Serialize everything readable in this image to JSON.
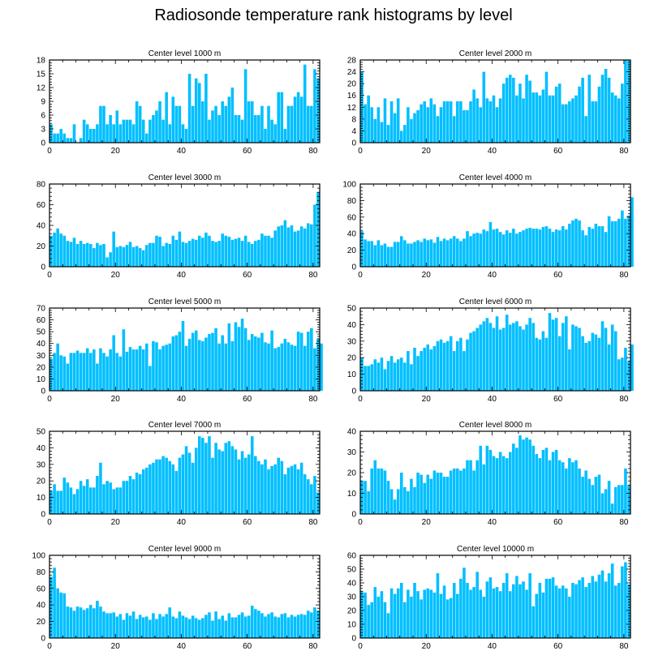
{
  "page": {
    "title": "Radiosonde temperature rank histograms by level"
  },
  "colors": {
    "bar": "#00bfff",
    "bar_edge": "#ffffff",
    "axis": "#000000"
  },
  "chart_data": [
    {
      "type": "bar",
      "title": "Center level 1000 m",
      "xlabel": "",
      "ylabel": "",
      "xlim": [
        0,
        82
      ],
      "ylim": [
        0,
        18
      ],
      "xticks": [
        0,
        20,
        40,
        60,
        80
      ],
      "yticks": [
        0,
        3,
        6,
        9,
        12,
        15,
        18
      ],
      "values": [
        4,
        2,
        2,
        3,
        2,
        1,
        1,
        4,
        0,
        1,
        5,
        4,
        3,
        3,
        4,
        8,
        8,
        4,
        6,
        4,
        7,
        4,
        5,
        5,
        5,
        4,
        9,
        8,
        5,
        2,
        5,
        6,
        7,
        9,
        5,
        11,
        4,
        10,
        8,
        8,
        4,
        3,
        15,
        8,
        14,
        13,
        9,
        15,
        5,
        7,
        8,
        6,
        9,
        8,
        10,
        12,
        6,
        6,
        5,
        16,
        9,
        9,
        6,
        6,
        8,
        3,
        8,
        5,
        4,
        11,
        11,
        3,
        8,
        8,
        10,
        11,
        10,
        17,
        8,
        8,
        16,
        14
      ]
    },
    {
      "type": "bar",
      "title": "Center level 2000 m",
      "xlabel": "",
      "ylabel": "",
      "xlim": [
        0,
        82
      ],
      "ylim": [
        0,
        28
      ],
      "xticks": [
        0,
        20,
        40,
        60,
        80
      ],
      "yticks": [
        0,
        4,
        8,
        12,
        16,
        20,
        24,
        28
      ],
      "values": [
        24,
        13,
        16,
        12,
        8,
        12,
        7,
        15,
        6,
        14,
        10,
        15,
        4,
        6,
        12,
        8,
        10,
        11,
        13,
        14,
        12,
        15,
        13,
        9,
        12,
        14,
        14,
        14,
        9,
        14,
        14,
        11,
        11,
        14,
        18,
        15,
        12,
        24,
        15,
        14,
        16,
        12,
        15,
        20,
        22,
        23,
        22,
        16,
        20,
        15,
        23,
        21,
        17,
        17,
        16,
        18,
        24,
        16,
        16,
        19,
        20,
        13,
        13,
        14,
        15,
        16,
        19,
        22,
        9,
        23,
        14,
        14,
        19,
        23,
        25,
        22,
        17,
        16,
        15,
        20,
        28,
        28
      ]
    },
    {
      "type": "bar",
      "title": "Center level 3000 m",
      "xlabel": "",
      "ylabel": "",
      "xlim": [
        0,
        82
      ],
      "ylim": [
        0,
        80
      ],
      "xticks": [
        0,
        20,
        40,
        60,
        80
      ],
      "yticks": [
        0,
        20,
        40,
        60,
        80
      ],
      "values": [
        30,
        33,
        37,
        32,
        30,
        25,
        24,
        28,
        22,
        25,
        22,
        23,
        22,
        18,
        23,
        21,
        22,
        9,
        14,
        34,
        19,
        20,
        19,
        21,
        24,
        19,
        20,
        18,
        16,
        21,
        23,
        23,
        30,
        29,
        20,
        23,
        22,
        30,
        26,
        34,
        24,
        23,
        25,
        27,
        26,
        30,
        28,
        33,
        30,
        25,
        24,
        25,
        32,
        30,
        29,
        26,
        27,
        28,
        25,
        30,
        24,
        22,
        25,
        26,
        32,
        30,
        30,
        28,
        35,
        39,
        40,
        45,
        38,
        40,
        34,
        35,
        39,
        37,
        42,
        41,
        60,
        72
      ]
    },
    {
      "type": "bar",
      "title": "Center level 4000 m",
      "xlabel": "",
      "ylabel": "",
      "xlim": [
        0,
        82
      ],
      "ylim": [
        0,
        100
      ],
      "xticks": [
        0,
        20,
        40,
        60,
        80
      ],
      "yticks": [
        0,
        20,
        40,
        60,
        80,
        100
      ],
      "values": [
        43,
        33,
        31,
        31,
        26,
        32,
        26,
        28,
        24,
        24,
        30,
        30,
        37,
        32,
        28,
        28,
        30,
        32,
        30,
        34,
        32,
        33,
        29,
        36,
        31,
        34,
        32,
        34,
        37,
        34,
        31,
        34,
        43,
        37,
        40,
        41,
        40,
        45,
        43,
        54,
        45,
        46,
        42,
        39,
        44,
        41,
        46,
        40,
        42,
        44,
        46,
        47,
        46,
        46,
        45,
        48,
        49,
        46,
        42,
        45,
        44,
        49,
        45,
        52,
        56,
        58,
        56,
        44,
        38,
        48,
        46,
        52,
        49,
        49,
        42,
        61,
        55,
        55,
        58,
        68,
        58,
        62,
        84
      ]
    },
    {
      "type": "bar",
      "title": "Center level 5000 m",
      "xlabel": "",
      "ylabel": "",
      "xlim": [
        0,
        82
      ],
      "ylim": [
        0,
        70
      ],
      "xticks": [
        0,
        20,
        40,
        60,
        80
      ],
      "yticks": [
        0,
        10,
        20,
        30,
        40,
        50,
        60,
        70
      ],
      "values": [
        27,
        32,
        40,
        30,
        29,
        23,
        32,
        32,
        34,
        32,
        32,
        36,
        32,
        35,
        23,
        36,
        32,
        29,
        35,
        47,
        32,
        29,
        52,
        33,
        37,
        35,
        35,
        38,
        35,
        40,
        21,
        42,
        41,
        35,
        38,
        39,
        40,
        46,
        47,
        50,
        59,
        38,
        44,
        49,
        51,
        43,
        42,
        45,
        48,
        49,
        53,
        40,
        47,
        40,
        57,
        42,
        58,
        54,
        61,
        53,
        43,
        48,
        46,
        45,
        49,
        41,
        40,
        51,
        36,
        37,
        40,
        44,
        41,
        39,
        38,
        50,
        49,
        38,
        50,
        53,
        36,
        44,
        40
      ]
    },
    {
      "type": "bar",
      "title": "Center level 6000 m",
      "xlabel": "",
      "ylabel": "",
      "xlim": [
        0,
        82
      ],
      "ylim": [
        0,
        50
      ],
      "xticks": [
        0,
        20,
        40,
        60,
        80
      ],
      "yticks": [
        0,
        10,
        20,
        30,
        40,
        50
      ],
      "values": [
        20,
        15,
        15,
        16,
        19,
        17,
        20,
        13,
        18,
        21,
        17,
        19,
        20,
        17,
        24,
        16,
        26,
        21,
        24,
        26,
        28,
        25,
        27,
        30,
        31,
        29,
        30,
        33,
        24,
        30,
        32,
        24,
        31,
        35,
        36,
        38,
        40,
        42,
        44,
        41,
        38,
        45,
        37,
        38,
        46,
        40,
        41,
        42,
        39,
        37,
        40,
        44,
        41,
        32,
        31,
        36,
        32,
        47,
        43,
        44,
        33,
        41,
        45,
        25,
        40,
        39,
        38,
        33,
        29,
        30,
        35,
        34,
        32,
        42,
        38,
        28,
        40,
        36,
        19,
        20,
        26,
        18,
        28
      ]
    },
    {
      "type": "bar",
      "title": "Center level 7000 m",
      "xlabel": "",
      "ylabel": "",
      "xlim": [
        0,
        82
      ],
      "ylim": [
        0,
        50
      ],
      "xticks": [
        0,
        20,
        40,
        60,
        80
      ],
      "yticks": [
        0,
        10,
        20,
        30,
        40,
        50
      ],
      "values": [
        14,
        18,
        14,
        14,
        22,
        19,
        16,
        12,
        15,
        20,
        17,
        21,
        16,
        16,
        23,
        31,
        18,
        20,
        19,
        15,
        16,
        16,
        20,
        20,
        23,
        21,
        25,
        24,
        27,
        28,
        30,
        31,
        33,
        33,
        35,
        34,
        32,
        30,
        26,
        34,
        36,
        41,
        37,
        31,
        40,
        47,
        46,
        43,
        47,
        34,
        43,
        39,
        38,
        43,
        44,
        41,
        39,
        33,
        38,
        34,
        36,
        47,
        35,
        32,
        30,
        33,
        27,
        29,
        30,
        34,
        32,
        24,
        28,
        29,
        30,
        27,
        31,
        24,
        21,
        18,
        23,
        13
      ]
    },
    {
      "type": "bar",
      "title": "Center level 8000 m",
      "xlabel": "",
      "ylabel": "",
      "xlim": [
        0,
        82
      ],
      "ylim": [
        0,
        40
      ],
      "xticks": [
        0,
        20,
        40,
        60,
        80
      ],
      "yticks": [
        0,
        10,
        20,
        30,
        40
      ],
      "values": [
        16,
        16,
        11,
        22,
        26,
        22,
        22,
        21,
        16,
        12,
        7,
        12,
        20,
        13,
        11,
        17,
        13,
        20,
        19,
        15,
        19,
        17,
        21,
        20,
        20,
        18,
        18,
        21,
        22,
        22,
        21,
        22,
        26,
        26,
        21,
        26,
        33,
        24,
        33,
        31,
        28,
        27,
        30,
        28,
        27,
        30,
        34,
        32,
        38,
        36,
        37,
        36,
        33,
        29,
        27,
        31,
        32,
        26,
        30,
        31,
        26,
        25,
        22,
        27,
        25,
        26,
        22,
        18,
        21,
        17,
        14,
        18,
        19,
        10,
        12,
        16,
        5,
        13,
        14,
        14,
        22,
        14
      ]
    },
    {
      "type": "bar",
      "title": "Center level 9000 m",
      "xlabel": "",
      "ylabel": "",
      "xlim": [
        0,
        82
      ],
      "ylim": [
        0,
        100
      ],
      "xticks": [
        0,
        20,
        40,
        60,
        80
      ],
      "yticks": [
        0,
        20,
        40,
        60,
        80,
        100
      ],
      "values": [
        74,
        85,
        60,
        55,
        54,
        38,
        37,
        33,
        38,
        37,
        34,
        36,
        40,
        36,
        45,
        38,
        32,
        30,
        30,
        31,
        26,
        29,
        22,
        30,
        27,
        32,
        23,
        28,
        25,
        26,
        22,
        30,
        23,
        29,
        26,
        29,
        37,
        26,
        24,
        32,
        27,
        25,
        23,
        27,
        24,
        22,
        24,
        28,
        31,
        21,
        32,
        23,
        27,
        21,
        30,
        25,
        25,
        28,
        31,
        26,
        27,
        39,
        35,
        33,
        30,
        26,
        29,
        31,
        26,
        25,
        29,
        30,
        25,
        28,
        26,
        28,
        29,
        28,
        33,
        31,
        37,
        33
      ]
    },
    {
      "type": "bar",
      "title": "Center level 10000 m",
      "xlabel": "",
      "ylabel": "",
      "xlim": [
        0,
        82
      ],
      "ylim": [
        0,
        60
      ],
      "xticks": [
        0,
        20,
        40,
        60,
        80
      ],
      "yticks": [
        0,
        10,
        20,
        30,
        40,
        50,
        60
      ],
      "values": [
        34,
        33,
        24,
        26,
        37,
        30,
        34,
        26,
        18,
        36,
        32,
        36,
        40,
        26,
        35,
        30,
        40,
        34,
        28,
        35,
        36,
        35,
        33,
        47,
        32,
        38,
        28,
        29,
        40,
        32,
        43,
        51,
        40,
        35,
        37,
        48,
        35,
        30,
        41,
        44,
        36,
        37,
        34,
        40,
        47,
        34,
        39,
        45,
        39,
        41,
        35,
        47,
        23,
        32,
        40,
        33,
        43,
        43,
        44,
        38,
        36,
        38,
        36,
        30,
        40,
        39,
        42,
        44,
        37,
        40,
        45,
        41,
        46,
        49,
        41,
        47,
        54,
        38,
        40,
        52,
        55,
        39
      ]
    }
  ]
}
